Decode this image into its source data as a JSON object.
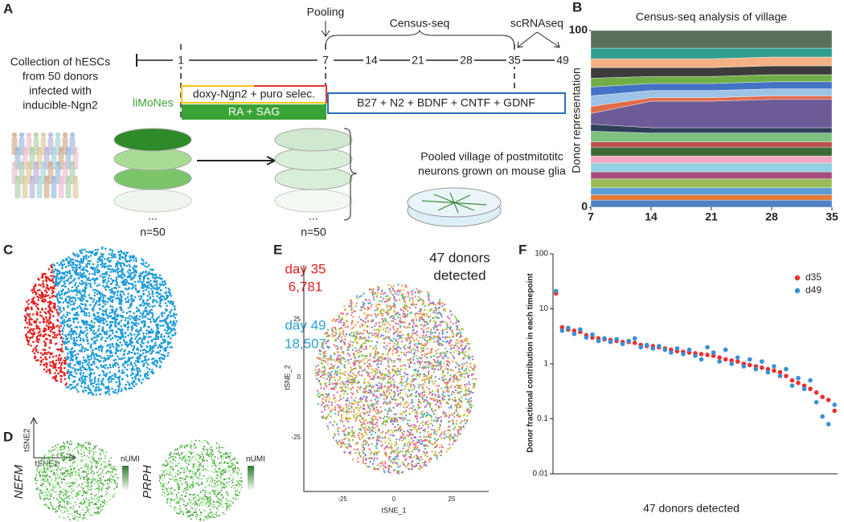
{
  "panels": {
    "A": {
      "letter": "A",
      "pooling": "Pooling",
      "census": "Census-seq",
      "scrna": "scRNAseq",
      "timeline": [
        "1",
        "7",
        "14",
        "21",
        "28",
        "35",
        "49"
      ],
      "collection": [
        "Collection of hESCs",
        "from 50 donors",
        "infected with",
        "inducible-Ngn2"
      ],
      "limones": "liMoNes",
      "doxy": "doxy-Ngn2 + puro selec.",
      "ra": "RA + SAG",
      "media": "B27 +  N2  + BDNF + CNTF + GDNF",
      "dots_left": "...",
      "n_left": "n=50",
      "dots_right": "...",
      "n_right": "n=50",
      "pooled": [
        "Pooled village of postmitotitc",
        "neurons grown on mouse glia"
      ]
    },
    "B": {
      "letter": "B"
    },
    "C": {
      "letter": "C",
      "day35": "day 35",
      "count35": "6,781",
      "day49": "day 49",
      "count49": "18,507",
      "axis_y": "tSNE2",
      "axis_x": "tSNE1"
    },
    "D": {
      "letter": "D",
      "gene1": "NEFM",
      "gene2": "PRPH",
      "legend1": "nUMI",
      "legend2": "nUMI"
    },
    "E": {
      "letter": "E",
      "note": [
        "47 donors",
        "detected"
      ],
      "xlabel": "tSNE_1",
      "ylabel": "tSNE_2",
      "xticks": [
        "-25",
        "0",
        "25"
      ],
      "yticks": [
        "-25",
        "0",
        "25"
      ]
    },
    "F": {
      "letter": "F"
    }
  },
  "chart_data": [
    {
      "type": "stacked_area",
      "title": "Census-seq analysis of village",
      "ylabel": "Donor representation",
      "x": [
        7,
        14,
        21,
        28,
        35
      ],
      "xlim": [
        7,
        35
      ],
      "xticks": [
        7,
        14,
        21,
        28,
        35
      ],
      "ylim": [
        0,
        100
      ],
      "yticks": [
        0,
        100
      ],
      "series": [
        {
          "color": "#4f7fc4",
          "values": [
            4,
            4,
            4,
            4,
            4
          ]
        },
        {
          "color": "#e07b39",
          "values": [
            3,
            3,
            3,
            3,
            3
          ]
        },
        {
          "color": "#5b9bd5",
          "values": [
            4,
            4,
            4,
            4,
            4
          ]
        },
        {
          "color": "#9bbb59",
          "values": [
            5,
            5,
            5,
            5,
            5
          ]
        },
        {
          "color": "#a64d79",
          "values": [
            4,
            4,
            4,
            4,
            4
          ]
        },
        {
          "color": "#8ed1e0",
          "values": [
            5,
            5,
            5,
            5,
            5
          ]
        },
        {
          "color": "#f2a7c3",
          "values": [
            4,
            4,
            4,
            4,
            4
          ]
        },
        {
          "color": "#3d6b35",
          "values": [
            5,
            5,
            5,
            5,
            5
          ]
        },
        {
          "color": "#c0504d",
          "values": [
            3,
            3,
            3,
            3,
            3
          ]
        },
        {
          "color": "#7fbf7f",
          "values": [
            6,
            5,
            5,
            5,
            5
          ]
        },
        {
          "color": "#2e4057",
          "values": [
            4,
            3,
            3,
            3,
            3
          ]
        },
        {
          "color": "#6d5b97",
          "values": [
            6,
            15,
            15,
            16,
            16
          ]
        },
        {
          "color": "#e26b4a",
          "values": [
            4,
            2,
            2,
            2,
            2
          ]
        },
        {
          "color": "#9dc3e6",
          "values": [
            6,
            4,
            4,
            4,
            4
          ]
        },
        {
          "color": "#4472c4",
          "values": [
            5,
            4,
            4,
            4,
            4
          ]
        },
        {
          "color": "#70ad47",
          "values": [
            5,
            4,
            4,
            4,
            4
          ]
        },
        {
          "color": "#3c3c3c",
          "values": [
            6,
            5,
            5,
            5,
            5
          ]
        },
        {
          "color": "#f4b183",
          "values": [
            5,
            5,
            5,
            5,
            5
          ]
        },
        {
          "color": "#2f9e8f",
          "values": [
            6,
            6,
            6,
            5,
            5
          ]
        },
        {
          "color": "#5a6f5a",
          "values": [
            10,
            10,
            10,
            10,
            10
          ]
        }
      ]
    },
    {
      "type": "scatter",
      "ylabel": "Donor fractional contribution in each timepoint",
      "xlabel": "47 donors detected",
      "log_y": true,
      "ylim": [
        0.01,
        100
      ],
      "yticks": [
        0.01,
        0.1,
        1,
        10,
        100
      ],
      "legend": "upper right",
      "categories": [
        null,
        null,
        null,
        null,
        null,
        null,
        null,
        null,
        null,
        null,
        null,
        null,
        null,
        null,
        null,
        null,
        null,
        null,
        null,
        null,
        null,
        null,
        null,
        null,
        null,
        null,
        null,
        null,
        null,
        null,
        null,
        null,
        null,
        null,
        null,
        null,
        null,
        null,
        null,
        null,
        null,
        null,
        null,
        null,
        null,
        null,
        null
      ],
      "series": [
        {
          "name": "d35",
          "color": "#e8322f",
          "values": [
            19,
            4.6,
            4.2,
            4.0,
            3.8,
            3.3,
            3.0,
            2.9,
            2.8,
            2.7,
            2.6,
            2.5,
            2.5,
            2.4,
            2.2,
            2.1,
            2.1,
            2.0,
            1.9,
            1.8,
            1.7,
            1.65,
            1.6,
            1.55,
            1.5,
            1.45,
            1.4,
            1.3,
            1.2,
            1.15,
            1.1,
            1.0,
            0.95,
            0.9,
            0.85,
            0.8,
            0.75,
            0.7,
            0.6,
            0.5,
            0.45,
            0.4,
            0.35,
            0.3,
            0.25,
            0.22,
            0.14
          ]
        },
        {
          "name": "d49",
          "color": "#3a8fd6",
          "values": [
            21,
            4.0,
            4.5,
            3.5,
            4.2,
            3.0,
            3.4,
            2.6,
            2.9,
            2.5,
            2.8,
            2.3,
            2.6,
            2.9,
            2.0,
            2.2,
            1.9,
            2.1,
            1.8,
            1.6,
            1.9,
            1.5,
            1.8,
            1.4,
            1.2,
            2.0,
            1.6,
            1.1,
            1.8,
            1.0,
            1.3,
            0.9,
            1.2,
            0.8,
            1.1,
            0.7,
            0.9,
            0.6,
            0.8,
            0.4,
            0.55,
            0.35,
            0.5,
            0.2,
            0.11,
            0.08,
            0.18
          ]
        }
      ]
    }
  ]
}
